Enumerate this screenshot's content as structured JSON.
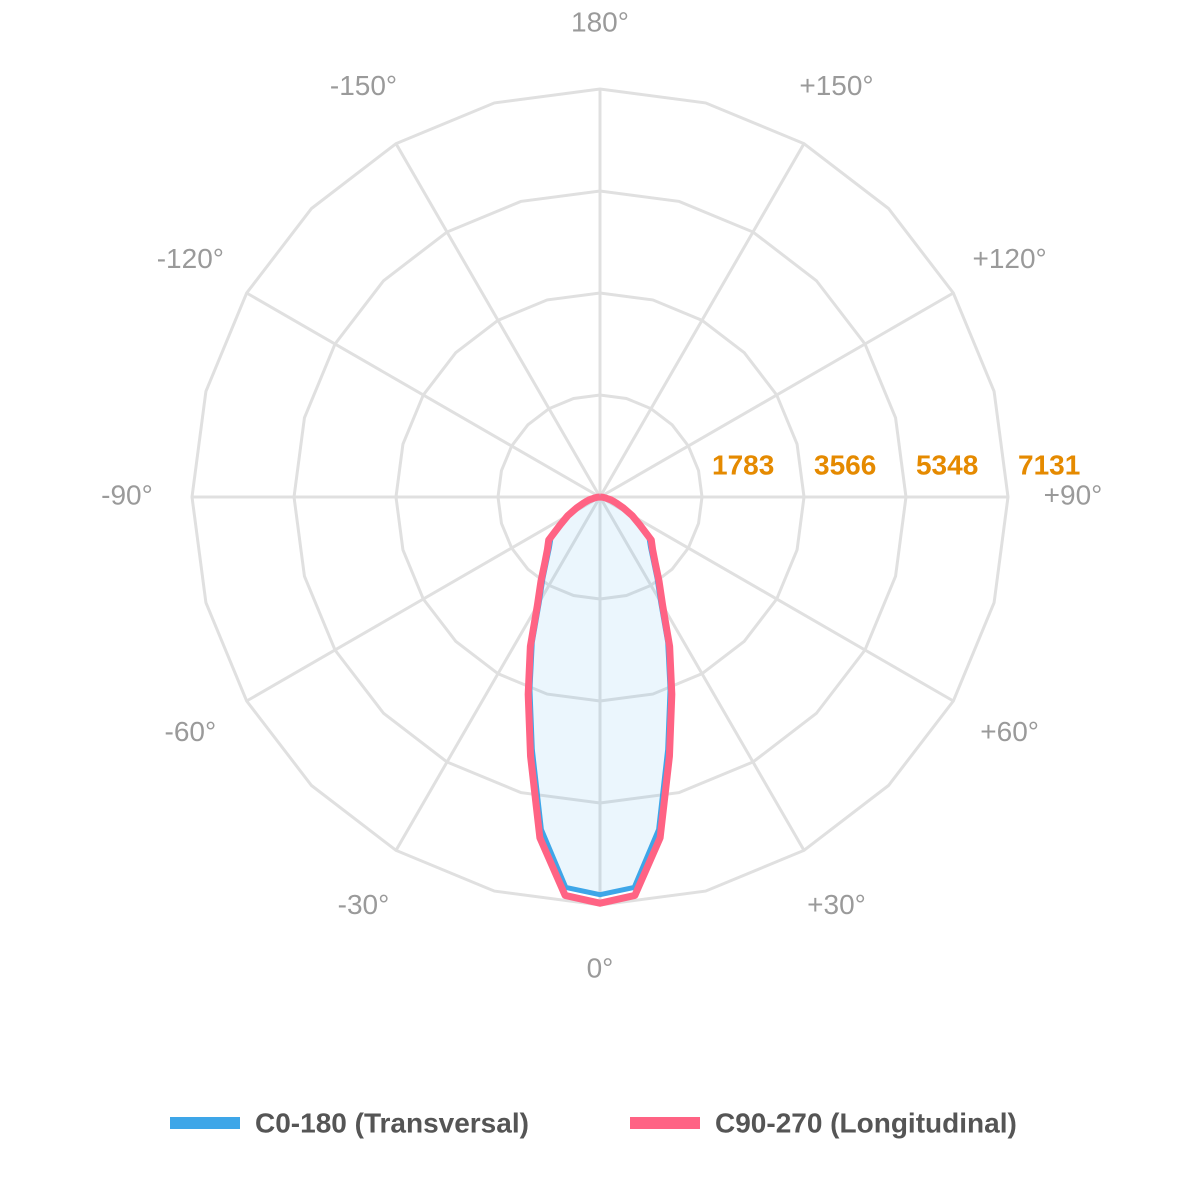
{
  "chart_data": {
    "type": "polar",
    "x": [
      -90,
      -85,
      -80,
      -75,
      -70,
      -65,
      -60,
      -55,
      -50,
      -45,
      -40,
      -35,
      -30,
      -25,
      -20,
      -15,
      -10,
      -5,
      0,
      5,
      10,
      15,
      20,
      25,
      30,
      35,
      40,
      45,
      50,
      55,
      60,
      65,
      70,
      75,
      80,
      85,
      90
    ],
    "series": [
      {
        "name": "C0-180 (Transversal)",
        "color": "#3ea6e8",
        "values": [
          0,
          40,
          90,
          180,
          280,
          420,
          610,
          800,
          1120,
          1250,
          1450,
          1740,
          2120,
          2800,
          3580,
          4570,
          5900,
          6850,
          6950,
          6850,
          5900,
          4570,
          3580,
          2800,
          2120,
          1740,
          1450,
          1250,
          1120,
          800,
          610,
          420,
          280,
          180,
          90,
          40,
          0
        ]
      },
      {
        "name": "C90-270 (Longitudinal)",
        "color": "#ff6384",
        "values": [
          0,
          50,
          100,
          200,
          300,
          450,
          650,
          850,
          1170,
          1300,
          1500,
          1800,
          2190,
          2880,
          3670,
          4690,
          6050,
          6990,
          7100,
          6990,
          6050,
          4690,
          3670,
          2880,
          2190,
          1800,
          1500,
          1300,
          1170,
          850,
          650,
          450,
          300,
          200,
          100,
          50,
          0
        ]
      }
    ],
    "rlim": [
      0,
      7131
    ],
    "rticks": [
      1783,
      3566,
      5348,
      7131
    ],
    "angle_ticks": [
      {
        "value": 0,
        "label": "0°"
      },
      {
        "value": 30,
        "label": "+30°"
      },
      {
        "value": 60,
        "label": "+60°"
      },
      {
        "value": 90,
        "label": "+90°"
      },
      {
        "value": 120,
        "label": "+120°"
      },
      {
        "value": 150,
        "label": "+150°"
      },
      {
        "value": 180,
        "label": "180°"
      },
      {
        "value": -150,
        "label": "-150°"
      },
      {
        "value": -120,
        "label": "-120°"
      },
      {
        "value": -90,
        "label": "-90°"
      },
      {
        "value": -60,
        "label": "-60°"
      },
      {
        "value": -30,
        "label": "-30°"
      }
    ],
    "grid": true,
    "legend": "bottom"
  }
}
